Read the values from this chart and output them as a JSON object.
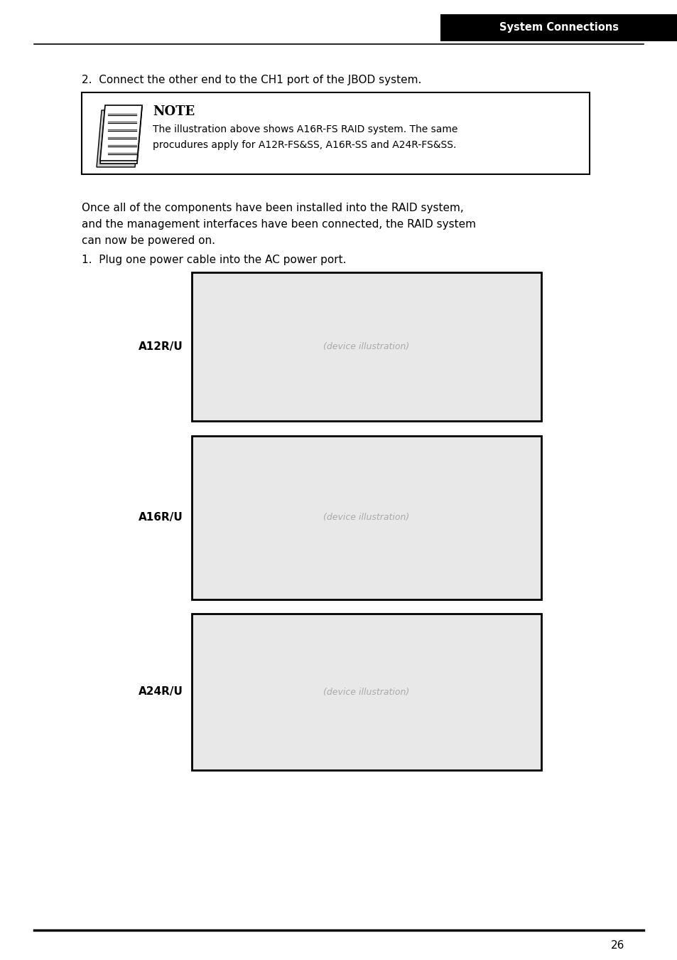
{
  "bg_color": "#ffffff",
  "page_number": "26",
  "header_text": "System Connections",
  "header_bg": "#000000",
  "header_text_color": "#ffffff",
  "step2_text": "2.  Connect the other end to the CH1 port of the JBOD system.",
  "note_title": "NOTE",
  "note_line1": "The illustration above shows A16R-FS RAID system. The same",
  "note_line2": "procudures apply for A12R-FS&SS, A16R-SS and A24R-FS&SS.",
  "para_line1": "Once all of the components have been installed into the RAID system,",
  "para_line2": "and the management interfaces have been connected, the RAID system",
  "para_line3": "can now be powered on.",
  "step1_text": "1.  Plug one power cable into the AC power port.",
  "label_A12RU": "A12R/U",
  "label_A16RU": "A16R/U",
  "label_A24RU": "A24R/U"
}
